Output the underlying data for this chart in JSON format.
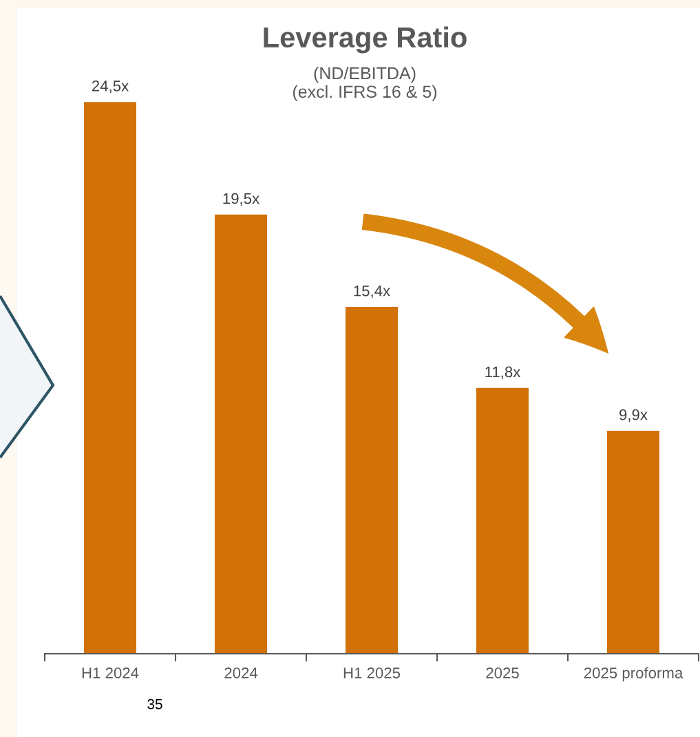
{
  "chart_data": {
    "type": "bar",
    "title": "Leverage Ratio",
    "subtitle": "(ND/EBITDA)\n(excl. IFRS 16 & 5)",
    "categories": [
      "H1 2024",
      "2024",
      "H1 2025",
      "2025",
      "2025 proforma"
    ],
    "values": [
      24.5,
      19.5,
      15.4,
      11.8,
      9.9
    ],
    "colors": [
      "#d27108",
      "#d27108",
      "#d27108",
      "#d27108",
      "#d27108"
    ],
    "value_labels": [
      "24,5x",
      "19,5x",
      "15,4x",
      "11,8x",
      "9,9x"
    ],
    "annotations": [
      "35"
    ],
    "grid": false,
    "legend": false
  }
}
